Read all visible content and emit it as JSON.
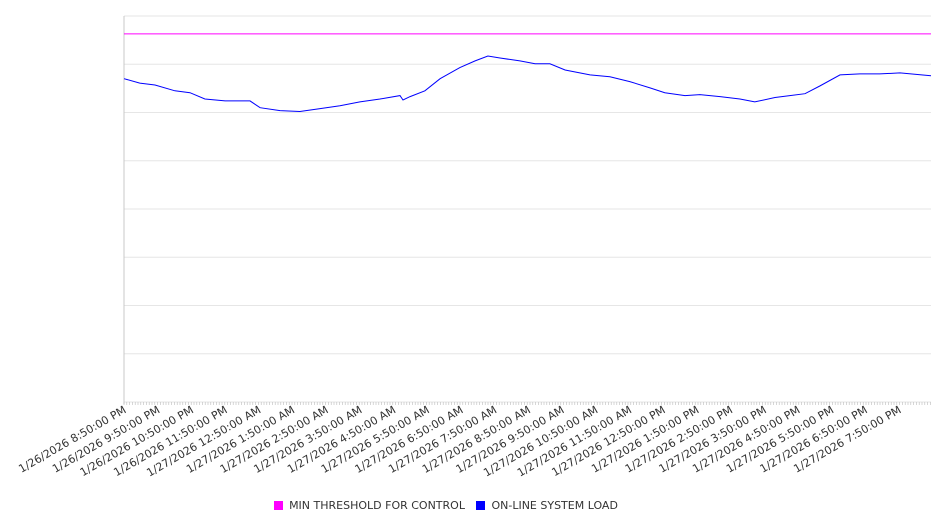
{
  "chart_data": {
    "type": "line",
    "title": "",
    "xlabel": "",
    "ylabel": "",
    "x_unit": "hours since 1/26/2026 8:50:00 PM",
    "xlim": [
      0,
      23.95
    ],
    "ylim": [
      0,
      8
    ],
    "grid": true,
    "y_tick_labels_shown": false,
    "legend_position": "bottom",
    "x_tick_labels": [
      "1/26/2026 8:50:00 PM",
      "1/26/2026 9:50:00 PM",
      "1/26/2026 10:50:00 PM",
      "1/26/2026 11:50:00 PM",
      "1/27/2026 12:50:00 AM",
      "1/27/2026 1:50:00 AM",
      "1/27/2026 2:50:00 AM",
      "1/27/2026 3:50:00 AM",
      "1/27/2026 4:50:00 AM",
      "1/27/2026 5:50:00 AM",
      "1/27/2026 6:50:00 AM",
      "1/27/2026 7:50:00 AM",
      "1/27/2026 8:50:00 AM",
      "1/27/2026 9:50:00 AM",
      "1/27/2026 10:50:00 AM",
      "1/27/2026 11:50:00 AM",
      "1/27/2026 12:50:00 PM",
      "1/27/2026 1:50:00 PM",
      "1/27/2026 2:50:00 PM",
      "1/27/2026 3:50:00 PM",
      "1/27/2026 4:50:00 PM",
      "1/27/2026 5:50:00 PM",
      "1/27/2026 6:50:00 PM",
      "1/27/2026 7:50:00 PM"
    ],
    "series": [
      {
        "name": "MIN THRESHOLD FOR CONTROL",
        "color": "#ff00ff",
        "x": [
          0,
          23.95
        ],
        "y": [
          7.63,
          7.63
        ]
      },
      {
        "name": "ON-LINE SYSTEM LOAD",
        "color": "#0000ff",
        "x": [
          0,
          0.47,
          0.92,
          1.51,
          1.96,
          2.4,
          3.0,
          3.74,
          4.04,
          4.63,
          5.22,
          5.82,
          6.41,
          7.0,
          7.6,
          8.19,
          8.28,
          8.49,
          8.93,
          9.38,
          9.97,
          10.42,
          10.8,
          11.16,
          11.75,
          12.2,
          12.64,
          13.09,
          13.83,
          14.42,
          15.01,
          15.61,
          16.05,
          16.65,
          17.09,
          17.69,
          18.28,
          18.72,
          19.32,
          19.76,
          20.21,
          20.65,
          21.25,
          21.84,
          22.43,
          23.03,
          23.95
        ],
        "y": [
          6.7,
          6.61,
          6.57,
          6.45,
          6.41,
          6.28,
          6.24,
          6.24,
          6.1,
          6.04,
          6.02,
          6.08,
          6.14,
          6.22,
          6.28,
          6.35,
          6.26,
          6.33,
          6.45,
          6.7,
          6.93,
          7.07,
          7.17,
          7.13,
          7.07,
          7.01,
          7.01,
          6.88,
          6.78,
          6.74,
          6.64,
          6.51,
          6.41,
          6.35,
          6.37,
          6.33,
          6.28,
          6.22,
          6.31,
          6.35,
          6.39,
          6.55,
          6.78,
          6.8,
          6.8,
          6.82,
          6.76
        ]
      }
    ]
  }
}
